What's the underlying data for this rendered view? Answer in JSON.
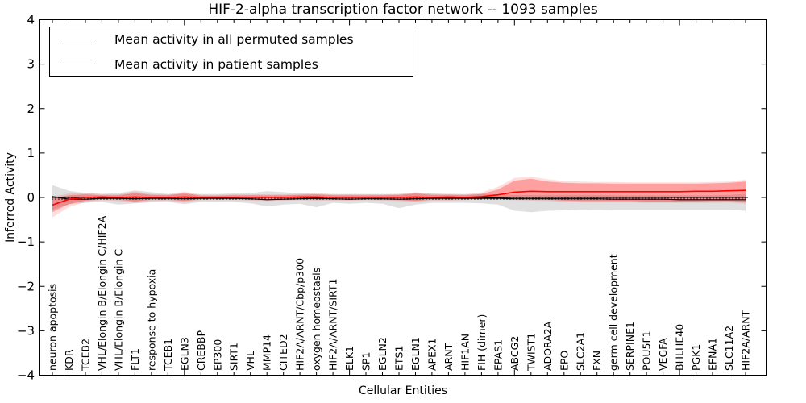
{
  "title": "HIF-2-alpha transcription factor network -- 1093 samples",
  "axes": {
    "ylabel": "Inferred Activity",
    "xlabel": "Cellular Entities",
    "ylim": [
      -4,
      4
    ],
    "yticks": [
      4,
      3,
      2,
      1,
      0,
      -1,
      -2,
      -3,
      -4
    ],
    "ytick_labels": [
      "4",
      "3",
      "2",
      "1",
      "0",
      "−1",
      "−2",
      "−3",
      "−4"
    ]
  },
  "legend": {
    "items": [
      {
        "label": "Mean activity in all permuted samples",
        "color": "#000000"
      },
      {
        "label": "Mean activity in patient samples",
        "color": "#ff0000"
      }
    ]
  },
  "colors": {
    "permuted_line": "#000000",
    "patient_line": "#ff0000",
    "permuted_band": "rgba(0,0,0,0.12)",
    "patient_band_inner": "rgba(255,0,0,0.28)",
    "patient_band_outer": "rgba(255,0,0,0.13)",
    "spine": "#000000"
  },
  "chart_data": {
    "type": "line",
    "title": "HIF-2-alpha transcription factor network -- 1093 samples",
    "xlabel": "Cellular Entities",
    "ylabel": "Inferred Activity",
    "ylim": [
      -4,
      4
    ],
    "grid": false,
    "legend_position": "upper left",
    "categories": [
      "neuron apoptosis",
      "KDR",
      "TCEB2",
      "VHL/Elongin B/Elongin C/HIF2A",
      "VHL/Elongin B/Elongin C",
      "FLT1",
      "response to hypoxia",
      "TCEB1",
      "EGLN3",
      "CREBBP",
      "EP300",
      "SIRT1",
      "VHL",
      "MMP14",
      "CITED2",
      "HIF2A/ARNT/Cbp/p300",
      "oxygen homeostasis",
      "HIF2A/ARNT/SIRT1",
      "ELK1",
      "SP1",
      "EGLN2",
      "ETS1",
      "EGLN1",
      "APEX1",
      "ARNT",
      "HIF1AN",
      "FIH (dimer)",
      "EPAS1",
      "ABCG2",
      "TWIST1",
      "ADORA2A",
      "EPO",
      "SLC2A1",
      "FXN",
      "germ cell development",
      "SERPINE1",
      "POU5F1",
      "VEGFA",
      "BHLHE40",
      "PGK1",
      "EFNA1",
      "SLC11A2",
      "HIF2A/ARNT"
    ],
    "series": [
      {
        "name": "Mean activity in all permuted samples",
        "color": "#000000",
        "values": [
          0.02,
          -0.04,
          -0.04,
          -0.02,
          -0.02,
          -0.03,
          -0.02,
          -0.02,
          -0.03,
          -0.02,
          -0.02,
          -0.02,
          -0.03,
          -0.05,
          -0.04,
          -0.03,
          -0.02,
          -0.03,
          -0.04,
          -0.03,
          -0.03,
          -0.04,
          -0.03,
          -0.02,
          -0.02,
          -0.02,
          -0.02,
          -0.02,
          -0.03,
          -0.03,
          -0.03,
          -0.03,
          -0.03,
          -0.03,
          -0.04,
          -0.04,
          -0.04,
          -0.04,
          -0.05,
          -0.05,
          -0.05,
          -0.05,
          -0.05
        ]
      },
      {
        "name": "Mean activity in patient samples",
        "color": "#ff0000",
        "values": [
          -0.17,
          -0.04,
          0.0,
          0.01,
          0.0,
          0.01,
          0.0,
          0.0,
          0.01,
          0.0,
          0.0,
          0.0,
          0.0,
          0.0,
          0.0,
          0.01,
          0.01,
          0.0,
          0.0,
          0.0,
          0.0,
          0.0,
          0.01,
          0.0,
          0.01,
          0.0,
          0.02,
          0.06,
          0.12,
          0.14,
          0.13,
          0.13,
          0.13,
          0.13,
          0.13,
          0.13,
          0.13,
          0.13,
          0.13,
          0.14,
          0.14,
          0.15,
          0.16
        ]
      }
    ],
    "bands": [
      {
        "name": "permuted-samples-band",
        "fill": "rgba(0,0,0,0.12)",
        "lo": [
          -0.28,
          -0.15,
          -0.12,
          -0.1,
          -0.16,
          -0.13,
          -0.11,
          -0.1,
          -0.15,
          -0.1,
          -0.09,
          -0.1,
          -0.13,
          -0.2,
          -0.16,
          -0.14,
          -0.22,
          -0.12,
          -0.14,
          -0.12,
          -0.14,
          -0.24,
          -0.16,
          -0.12,
          -0.12,
          -0.12,
          -0.13,
          -0.16,
          -0.3,
          -0.33,
          -0.3,
          -0.29,
          -0.28,
          -0.27,
          -0.28,
          -0.28,
          -0.28,
          -0.28,
          -0.28,
          -0.28,
          -0.28,
          -0.28,
          -0.3
        ],
        "hi": [
          0.28,
          0.15,
          0.1,
          0.08,
          0.1,
          0.16,
          0.12,
          0.08,
          0.08,
          0.08,
          0.08,
          0.09,
          0.1,
          0.14,
          0.12,
          0.09,
          0.08,
          0.08,
          0.08,
          0.08,
          0.08,
          0.08,
          0.09,
          0.09,
          0.08,
          0.08,
          0.08,
          0.07,
          0.06,
          0.06,
          0.06,
          0.06,
          0.06,
          0.06,
          0.05,
          0.05,
          0.05,
          0.05,
          0.05,
          0.05,
          0.05,
          0.06,
          0.08
        ]
      },
      {
        "name": "patient-samples-band-outer",
        "fill": "rgba(255,0,0,0.13)",
        "lo": [
          -0.45,
          -0.22,
          -0.1,
          -0.06,
          -0.08,
          -0.12,
          -0.08,
          -0.07,
          -0.11,
          -0.06,
          -0.06,
          -0.06,
          -0.07,
          -0.08,
          -0.07,
          -0.06,
          -0.07,
          -0.07,
          -0.07,
          -0.06,
          -0.07,
          -0.08,
          -0.1,
          -0.07,
          -0.07,
          -0.06,
          -0.05,
          -0.05,
          -0.06,
          -0.07,
          -0.08,
          -0.1,
          -0.11,
          -0.11,
          -0.11,
          -0.11,
          -0.12,
          -0.12,
          -0.12,
          -0.12,
          -0.12,
          -0.11,
          -0.14
        ],
        "hi": [
          0.02,
          0.09,
          0.1,
          0.08,
          0.07,
          0.13,
          0.08,
          0.07,
          0.13,
          0.06,
          0.06,
          0.07,
          0.07,
          0.07,
          0.07,
          0.08,
          0.1,
          0.07,
          0.07,
          0.07,
          0.07,
          0.08,
          0.12,
          0.08,
          0.08,
          0.07,
          0.11,
          0.24,
          0.44,
          0.47,
          0.41,
          0.37,
          0.36,
          0.35,
          0.35,
          0.34,
          0.34,
          0.34,
          0.34,
          0.34,
          0.35,
          0.36,
          0.4
        ]
      },
      {
        "name": "patient-samples-band-inner",
        "fill": "rgba(255,0,0,0.28)",
        "lo": [
          -0.33,
          -0.15,
          -0.07,
          -0.04,
          -0.05,
          -0.09,
          -0.05,
          -0.05,
          -0.08,
          -0.04,
          -0.04,
          -0.04,
          -0.05,
          -0.05,
          -0.05,
          -0.04,
          -0.05,
          -0.05,
          -0.05,
          -0.04,
          -0.05,
          -0.06,
          -0.08,
          -0.05,
          -0.05,
          -0.04,
          -0.03,
          -0.02,
          -0.02,
          -0.03,
          -0.05,
          -0.07,
          -0.08,
          -0.08,
          -0.08,
          -0.08,
          -0.09,
          -0.09,
          -0.09,
          -0.09,
          -0.08,
          -0.08,
          -0.1
        ],
        "hi": [
          -0.02,
          0.05,
          0.07,
          0.05,
          0.05,
          0.1,
          0.06,
          0.05,
          0.1,
          0.04,
          0.04,
          0.05,
          0.05,
          0.05,
          0.05,
          0.06,
          0.07,
          0.05,
          0.05,
          0.05,
          0.05,
          0.06,
          0.09,
          0.06,
          0.06,
          0.05,
          0.08,
          0.18,
          0.38,
          0.42,
          0.36,
          0.33,
          0.32,
          0.32,
          0.31,
          0.31,
          0.31,
          0.31,
          0.31,
          0.31,
          0.32,
          0.33,
          0.36
        ]
      }
    ],
    "zero_line": 0
  }
}
